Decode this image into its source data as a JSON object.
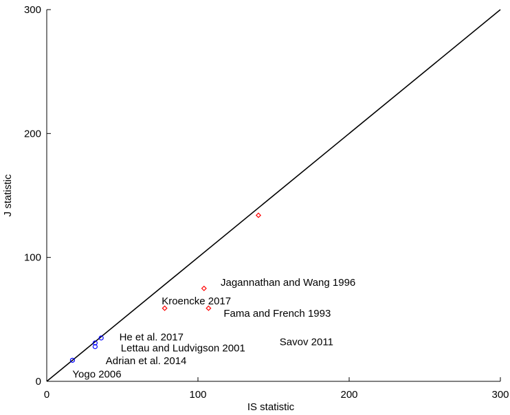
{
  "chart_data": {
    "type": "scatter",
    "xlabel": "IS statistic",
    "ylabel": "J statistic",
    "xlim": [
      0,
      300
    ],
    "ylim": [
      0,
      300
    ],
    "xticks": [
      "0",
      "100",
      "200",
      "300"
    ],
    "yticks": [
      "0",
      "100",
      "200",
      "300"
    ],
    "grid": false,
    "reference_line": {
      "x": [
        0,
        300
      ],
      "y": [
        0,
        300
      ],
      "color": "#000000"
    },
    "series": [
      {
        "marker": "circle",
        "color": "#0000ff",
        "points": [
          {
            "x": 17,
            "y": 17
          },
          {
            "x": 32,
            "y": 31
          },
          {
            "x": 32,
            "y": 28
          },
          {
            "x": 36,
            "y": 35
          }
        ]
      },
      {
        "marker": "diamond",
        "color": "#ff0000",
        "points": [
          {
            "x": 140,
            "y": 134
          },
          {
            "x": 104,
            "y": 75
          },
          {
            "x": 78,
            "y": 59
          },
          {
            "x": 107,
            "y": 59
          }
        ]
      }
    ],
    "annotations": [
      {
        "text": "Yogo 2006",
        "x": 17,
        "y": 3
      },
      {
        "text": "Adrian et al. 2014",
        "x": 39,
        "y": 14
      },
      {
        "text": "Lettau and Ludvigson 2001",
        "x": 49,
        "y": 24
      },
      {
        "text": "He et al. 2017",
        "x": 48,
        "y": 33
      },
      {
        "text": "Kroencke 2017",
        "x": 76,
        "y": 62
      },
      {
        "text": "Fama and French  1993",
        "x": 117,
        "y": 52
      },
      {
        "text": "Jagannathan and Wang 1996",
        "x": 115,
        "y": 77
      },
      {
        "text": "Savov 2011",
        "x": 154,
        "y": 29
      }
    ]
  }
}
